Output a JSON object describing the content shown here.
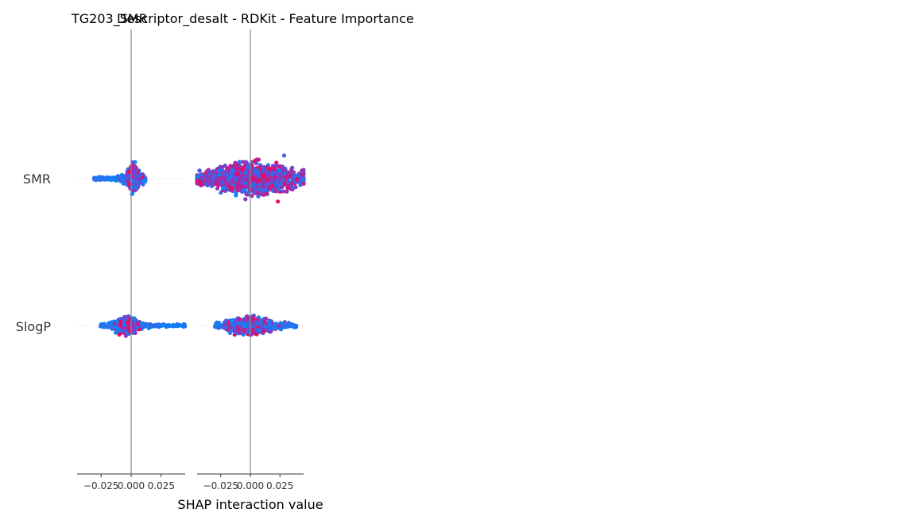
{
  "chart_data": {
    "type": "scatter",
    "subtype": "shap-interaction-beeswarm",
    "titles": [
      "TG203_SMR",
      "Descriptor_desalt - RDKit - Feature Importance"
    ],
    "xlabel": "SHAP interaction value",
    "features": [
      "SMR",
      "SlogP"
    ],
    "panels": [
      {
        "column_feature": "SMR",
        "xlim": [
          -0.045,
          0.045
        ],
        "xticks": [
          -0.025,
          0.0,
          0.025
        ],
        "xtick_labels": [
          "−0.025",
          "0.000",
          "0.025"
        ],
        "rows": [
          {
            "feature": "SMR",
            "spread_low": -0.031,
            "spread_high": 0.012,
            "band": 0.19,
            "main_low": -0.003,
            "main_high": 0.007,
            "tail_color": "low"
          },
          {
            "feature": "SlogP",
            "spread_low": -0.026,
            "spread_high": 0.045,
            "band": 0.13,
            "main_low": -0.013,
            "main_high": 0.006,
            "tail_color": "low"
          }
        ]
      },
      {
        "column_feature": "SlogP",
        "xlim": [
          -0.045,
          0.045
        ],
        "xticks": [
          -0.025,
          0.0,
          0.025
        ],
        "xtick_labels": [
          "−0.025",
          "0.000",
          "0.025"
        ],
        "rows": [
          {
            "feature": "SMR",
            "spread_low": -0.045,
            "spread_high": 0.045,
            "band": 0.26,
            "main_low": -0.042,
            "main_high": 0.042,
            "tail_color": "mixed"
          },
          {
            "feature": "SlogP",
            "spread_low": -0.03,
            "spread_high": 0.039,
            "band": 0.14,
            "main_low": -0.02,
            "main_high": 0.02,
            "tail_color": "low"
          }
        ]
      }
    ],
    "colormap": {
      "low": "#008afb",
      "mid": "#7b3fd0",
      "high": "#ff0052"
    },
    "grid": false
  }
}
